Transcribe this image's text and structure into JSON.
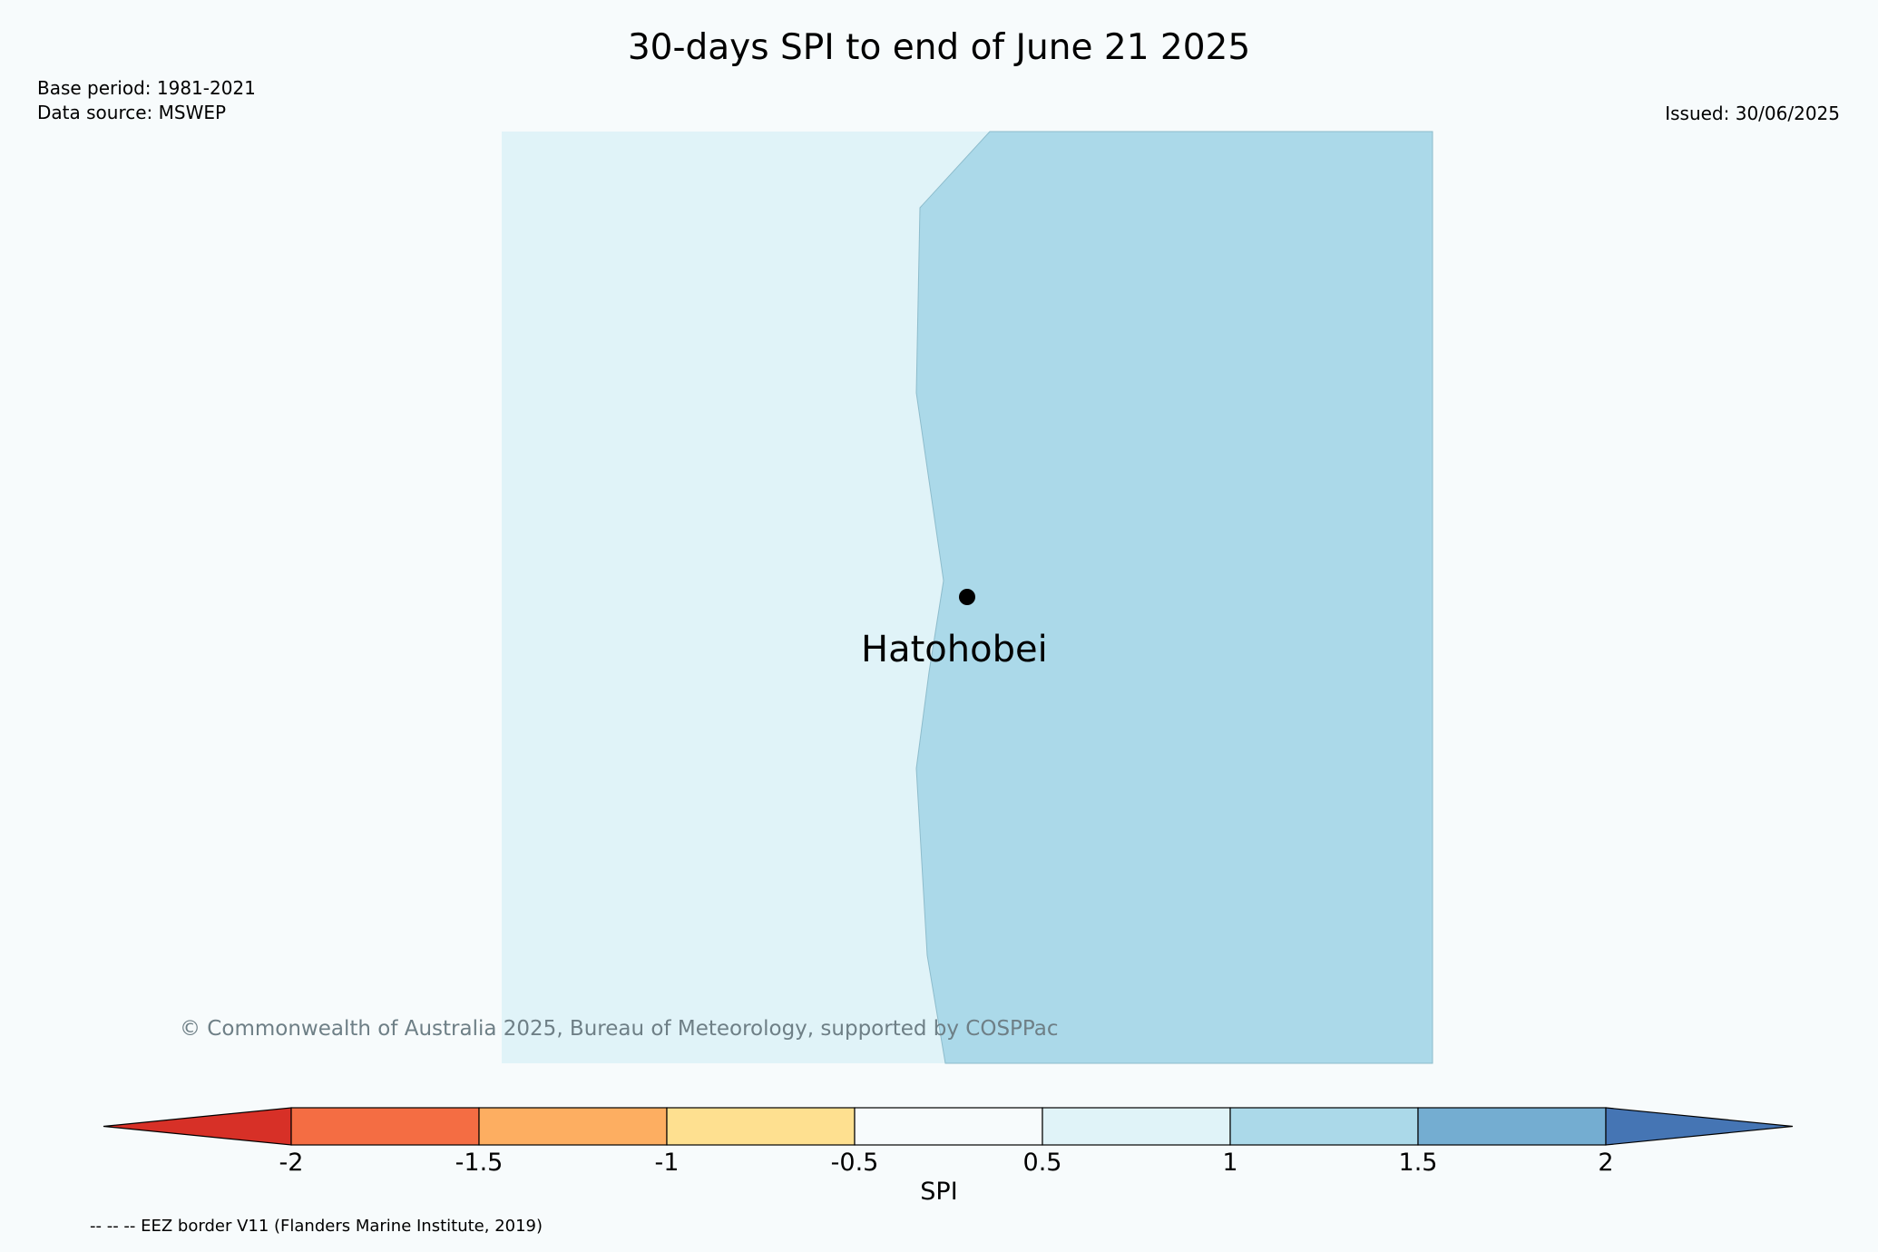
{
  "header": {
    "title": "30-days SPI to end of June 21 2025",
    "base_period": "Base period: 1981-2021",
    "data_source": "Data source: MSWEP",
    "issued": "Issued: 30/06/2025"
  },
  "map": {
    "place": "Hatohobei",
    "copyright": "© Commonwealth of Australia 2025, Bureau of Meteorology, supported by COSPPac",
    "left_region_spi_class": "0.5 to 1",
    "right_region_spi_class": "1 to 1.5"
  },
  "colorbar": {
    "label": "SPI",
    "ticks": [
      "-2",
      "-1.5",
      "-1",
      "-0.5",
      "0.5",
      "1",
      "1.5",
      "2"
    ],
    "bins": [
      {
        "range": "< -2",
        "color": "#d73027"
      },
      {
        "range": "-2 to -1.5",
        "color": "#f46d43"
      },
      {
        "range": "-1.5 to -1",
        "color": "#fdae61"
      },
      {
        "range": "-1 to -0.5",
        "color": "#fee090"
      },
      {
        "range": "-0.5 to 0.5",
        "color": "#f7fbfc"
      },
      {
        "range": "0.5 to 1",
        "color": "#e0f3f8"
      },
      {
        "range": "1 to 1.5",
        "color": "#abd9e9"
      },
      {
        "range": "1.5 to 2",
        "color": "#74add1"
      },
      {
        "range": "> 2",
        "color": "#4575b4"
      }
    ]
  },
  "footer": {
    "eez_note": "-- -- -- EEZ border V11 (Flanders Marine Institute, 2019)"
  }
}
